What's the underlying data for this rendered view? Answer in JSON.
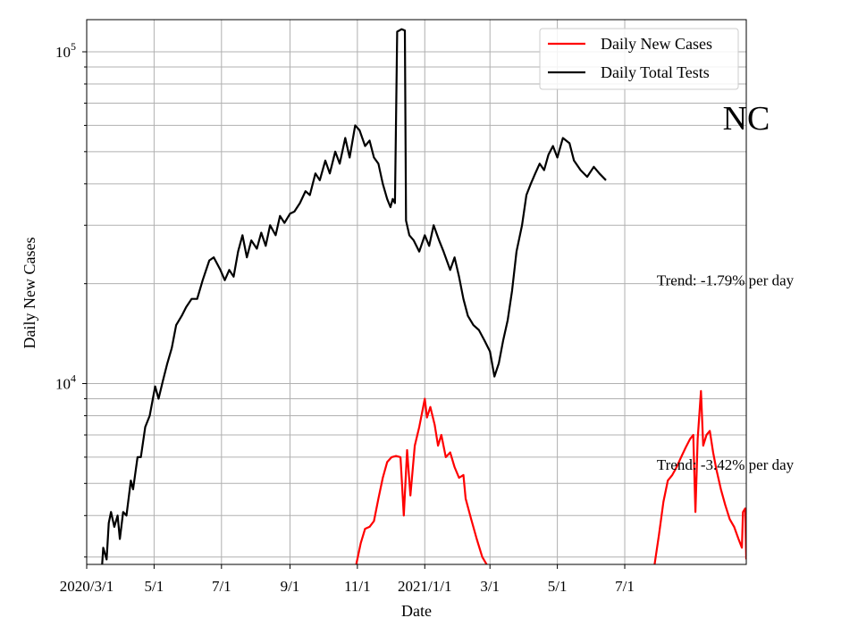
{
  "chart_data": {
    "type": "line",
    "title": "NC",
    "xlabel": "Date",
    "ylabel": "Daily New Cases",
    "yscale": "log",
    "ylim": [
      2850,
      125000
    ],
    "xlim": [
      "2020-03-01",
      "2021-10-19"
    ],
    "grid": true,
    "legend": "top-right",
    "x_ticks": [
      {
        "label": "2020/3/1",
        "date": "2020-03-01"
      },
      {
        "label": "5/1",
        "date": "2020-05-01"
      },
      {
        "label": "7/1",
        "date": "2020-07-01"
      },
      {
        "label": "9/1",
        "date": "2020-09-01"
      },
      {
        "label": "11/1",
        "date": "2020-11-01"
      },
      {
        "label": "2021/1/1",
        "date": "2021-01-01"
      },
      {
        "label": "3/1",
        "date": "2021-03-01"
      },
      {
        "label": "5/1",
        "date": "2021-05-01"
      },
      {
        "label": "7/1",
        "date": "2021-07-01"
      }
    ],
    "y_ticks": [
      {
        "base": "10",
        "exp": "4",
        "value": 10000
      },
      {
        "base": "10",
        "exp": "5",
        "value": 100000
      }
    ],
    "annotations": [
      {
        "text": "Trend: -1.79% per day",
        "x": "2021-07-30",
        "y": 20500
      },
      {
        "text": "Trend: -3.42% per day",
        "x": "2021-07-30",
        "y": 5700
      }
    ],
    "series": [
      {
        "name": "Daily New Cases",
        "color": "#ff0000",
        "points": [
          [
            "2020-10-31",
            2850
          ],
          [
            "2020-11-04",
            3300
          ],
          [
            "2020-11-08",
            3650
          ],
          [
            "2020-11-12",
            3700
          ],
          [
            "2020-11-16",
            3850
          ],
          [
            "2020-11-20",
            4500
          ],
          [
            "2020-11-24",
            5200
          ],
          [
            "2020-11-28",
            5800
          ],
          [
            "2020-12-02",
            6000
          ],
          [
            "2020-12-06",
            6050
          ],
          [
            "2020-12-10",
            6000
          ],
          [
            "2020-12-13",
            4000
          ],
          [
            "2020-12-16",
            6300
          ],
          [
            "2020-12-19",
            4600
          ],
          [
            "2020-12-23",
            6500
          ],
          [
            "2020-12-27",
            7400
          ],
          [
            "2021-01-01",
            9000
          ],
          [
            "2021-01-03",
            7900
          ],
          [
            "2021-01-06",
            8500
          ],
          [
            "2021-01-10",
            7500
          ],
          [
            "2021-01-13",
            6500
          ],
          [
            "2021-01-16",
            7000
          ],
          [
            "2021-01-20",
            6000
          ],
          [
            "2021-01-24",
            6200
          ],
          [
            "2021-01-28",
            5600
          ],
          [
            "2021-02-01",
            5200
          ],
          [
            "2021-02-05",
            5300
          ],
          [
            "2021-02-07",
            4500
          ],
          [
            "2021-02-12",
            3900
          ],
          [
            "2021-02-17",
            3400
          ],
          [
            "2021-02-22",
            3000
          ],
          [
            "2021-02-26",
            2850
          ]
        ]
      },
      {
        "name": "Daily New Cases",
        "color": "#ff0000",
        "points": [
          [
            "2021-07-28",
            2850
          ],
          [
            "2021-08-01",
            3500
          ],
          [
            "2021-08-05",
            4400
          ],
          [
            "2021-08-09",
            5100
          ],
          [
            "2021-08-13",
            5300
          ],
          [
            "2021-08-17",
            5600
          ],
          [
            "2021-08-21",
            6000
          ],
          [
            "2021-08-25",
            6400
          ],
          [
            "2021-08-29",
            6800
          ],
          [
            "2021-09-01",
            7000
          ],
          [
            "2021-09-03",
            4100
          ],
          [
            "2021-09-05",
            6800
          ],
          [
            "2021-09-08",
            9500
          ],
          [
            "2021-09-10",
            6500
          ],
          [
            "2021-09-13",
            7000
          ],
          [
            "2021-09-16",
            7200
          ],
          [
            "2021-09-19",
            6200
          ],
          [
            "2021-09-22",
            5500
          ],
          [
            "2021-09-26",
            4800
          ],
          [
            "2021-09-30",
            4300
          ],
          [
            "2021-10-04",
            3900
          ],
          [
            "2021-10-08",
            3700
          ],
          [
            "2021-10-12",
            3400
          ],
          [
            "2021-10-15",
            3200
          ],
          [
            "2021-10-16",
            4100
          ],
          [
            "2021-10-18",
            4200
          ],
          [
            "2021-10-19",
            2950
          ]
        ]
      },
      {
        "name": "Daily Total Tests",
        "color": "#000000",
        "points": [
          [
            "2020-03-15",
            2850
          ],
          [
            "2020-03-16",
            3200
          ],
          [
            "2020-03-19",
            2950
          ],
          [
            "2020-03-21",
            3800
          ],
          [
            "2020-03-23",
            4100
          ],
          [
            "2020-03-26",
            3700
          ],
          [
            "2020-03-29",
            4000
          ],
          [
            "2020-03-31",
            3400
          ],
          [
            "2020-04-03",
            4100
          ],
          [
            "2020-04-06",
            4000
          ],
          [
            "2020-04-10",
            5100
          ],
          [
            "2020-04-12",
            4800
          ],
          [
            "2020-04-16",
            6000
          ],
          [
            "2020-04-19",
            6000
          ],
          [
            "2020-04-23",
            7400
          ],
          [
            "2020-04-27",
            8000
          ],
          [
            "2020-05-02",
            9800
          ],
          [
            "2020-05-05",
            9000
          ],
          [
            "2020-05-09",
            10200
          ],
          [
            "2020-05-13",
            11500
          ],
          [
            "2020-05-17",
            12800
          ],
          [
            "2020-05-21",
            15000
          ],
          [
            "2020-05-26",
            16000
          ],
          [
            "2020-05-30",
            17000
          ],
          [
            "2020-06-04",
            18000
          ],
          [
            "2020-06-09",
            18000
          ],
          [
            "2020-06-14",
            20500
          ],
          [
            "2020-06-20",
            23500
          ],
          [
            "2020-06-24",
            24000
          ],
          [
            "2020-06-30",
            22000
          ],
          [
            "2020-07-04",
            20500
          ],
          [
            "2020-07-08",
            22000
          ],
          [
            "2020-07-12",
            21000
          ],
          [
            "2020-07-16",
            25000
          ],
          [
            "2020-07-20",
            28000
          ],
          [
            "2020-07-24",
            24000
          ],
          [
            "2020-07-28",
            27000
          ],
          [
            "2020-08-02",
            25500
          ],
          [
            "2020-08-06",
            28500
          ],
          [
            "2020-08-10",
            26000
          ],
          [
            "2020-08-14",
            30000
          ],
          [
            "2020-08-19",
            28000
          ],
          [
            "2020-08-23",
            32000
          ],
          [
            "2020-08-27",
            30500
          ],
          [
            "2020-09-01",
            32500
          ],
          [
            "2020-09-05",
            33000
          ],
          [
            "2020-09-10",
            35000
          ],
          [
            "2020-09-15",
            38000
          ],
          [
            "2020-09-19",
            37000
          ],
          [
            "2020-09-24",
            43000
          ],
          [
            "2020-09-28",
            41000
          ],
          [
            "2020-10-03",
            47000
          ],
          [
            "2020-10-07",
            43000
          ],
          [
            "2020-10-12",
            50000
          ],
          [
            "2020-10-16",
            46000
          ],
          [
            "2020-10-21",
            55000
          ],
          [
            "2020-10-25",
            48000
          ],
          [
            "2020-10-30",
            60000
          ],
          [
            "2020-11-03",
            58000
          ],
          [
            "2020-11-08",
            52000
          ],
          [
            "2020-11-12",
            54000
          ],
          [
            "2020-11-16",
            48000
          ],
          [
            "2020-11-20",
            46000
          ],
          [
            "2020-11-24",
            40000
          ],
          [
            "2020-11-28",
            36000
          ],
          [
            "2020-12-01",
            34000
          ],
          [
            "2020-12-03",
            36000
          ],
          [
            "2020-12-05",
            35000
          ],
          [
            "2020-12-07",
            115000
          ],
          [
            "2020-12-11",
            117000
          ],
          [
            "2020-12-14",
            116000
          ],
          [
            "2020-12-15",
            31000
          ],
          [
            "2020-12-18",
            28000
          ],
          [
            "2020-12-22",
            27000
          ],
          [
            "2020-12-27",
            25000
          ],
          [
            "2021-01-01",
            28000
          ],
          [
            "2021-01-05",
            26000
          ],
          [
            "2021-01-09",
            30000
          ],
          [
            "2021-01-14",
            27000
          ],
          [
            "2021-01-18",
            25000
          ],
          [
            "2021-01-24",
            22000
          ],
          [
            "2021-01-28",
            24000
          ],
          [
            "2021-02-01",
            21000
          ],
          [
            "2021-02-05",
            18000
          ],
          [
            "2021-02-09",
            16000
          ],
          [
            "2021-02-14",
            15000
          ],
          [
            "2021-02-19",
            14500
          ],
          [
            "2021-02-24",
            13500
          ],
          [
            "2021-03-01",
            12500
          ],
          [
            "2021-03-05",
            10500
          ],
          [
            "2021-03-09",
            11500
          ],
          [
            "2021-03-13",
            13500
          ],
          [
            "2021-03-17",
            15500
          ],
          [
            "2021-03-21",
            19000
          ],
          [
            "2021-03-25",
            25000
          ],
          [
            "2021-03-30",
            30000
          ],
          [
            "2021-04-03",
            37000
          ],
          [
            "2021-04-07",
            40000
          ],
          [
            "2021-04-11",
            43000
          ],
          [
            "2021-04-15",
            46000
          ],
          [
            "2021-04-19",
            44000
          ],
          [
            "2021-04-23",
            49000
          ],
          [
            "2021-04-27",
            52000
          ],
          [
            "2021-05-01",
            48000
          ],
          [
            "2021-05-06",
            55000
          ],
          [
            "2021-05-12",
            53000
          ],
          [
            "2021-05-16",
            47000
          ],
          [
            "2021-05-22",
            44000
          ],
          [
            "2021-05-28",
            42000
          ],
          [
            "2021-06-03",
            45000
          ],
          [
            "2021-06-08",
            43000
          ],
          [
            "2021-06-14",
            41000
          ]
        ]
      }
    ]
  }
}
